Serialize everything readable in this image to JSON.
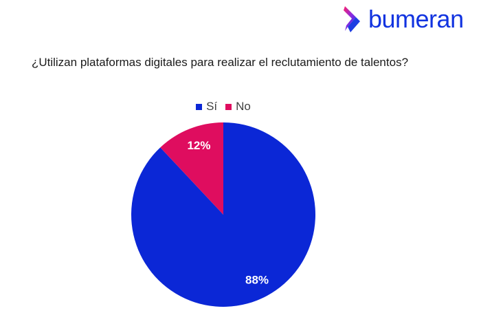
{
  "brand": {
    "name": "bumeran",
    "color": "#1133e0",
    "mark_colors": [
      "#ff1f6a",
      "#8a2be2",
      "#1133e0"
    ]
  },
  "chart_data": {
    "type": "pie",
    "title": "¿Utilizan plataformas digitales para realizar el reclutamiento de talentos?",
    "categories": [
      "Sí",
      "No"
    ],
    "values": [
      88,
      12
    ],
    "value_labels": [
      "88%",
      "12%"
    ],
    "colors": [
      "#0b27d6",
      "#df0d5f"
    ],
    "legend_position": "top",
    "start_angle": "12 o'clock",
    "direction": "clockwise"
  }
}
